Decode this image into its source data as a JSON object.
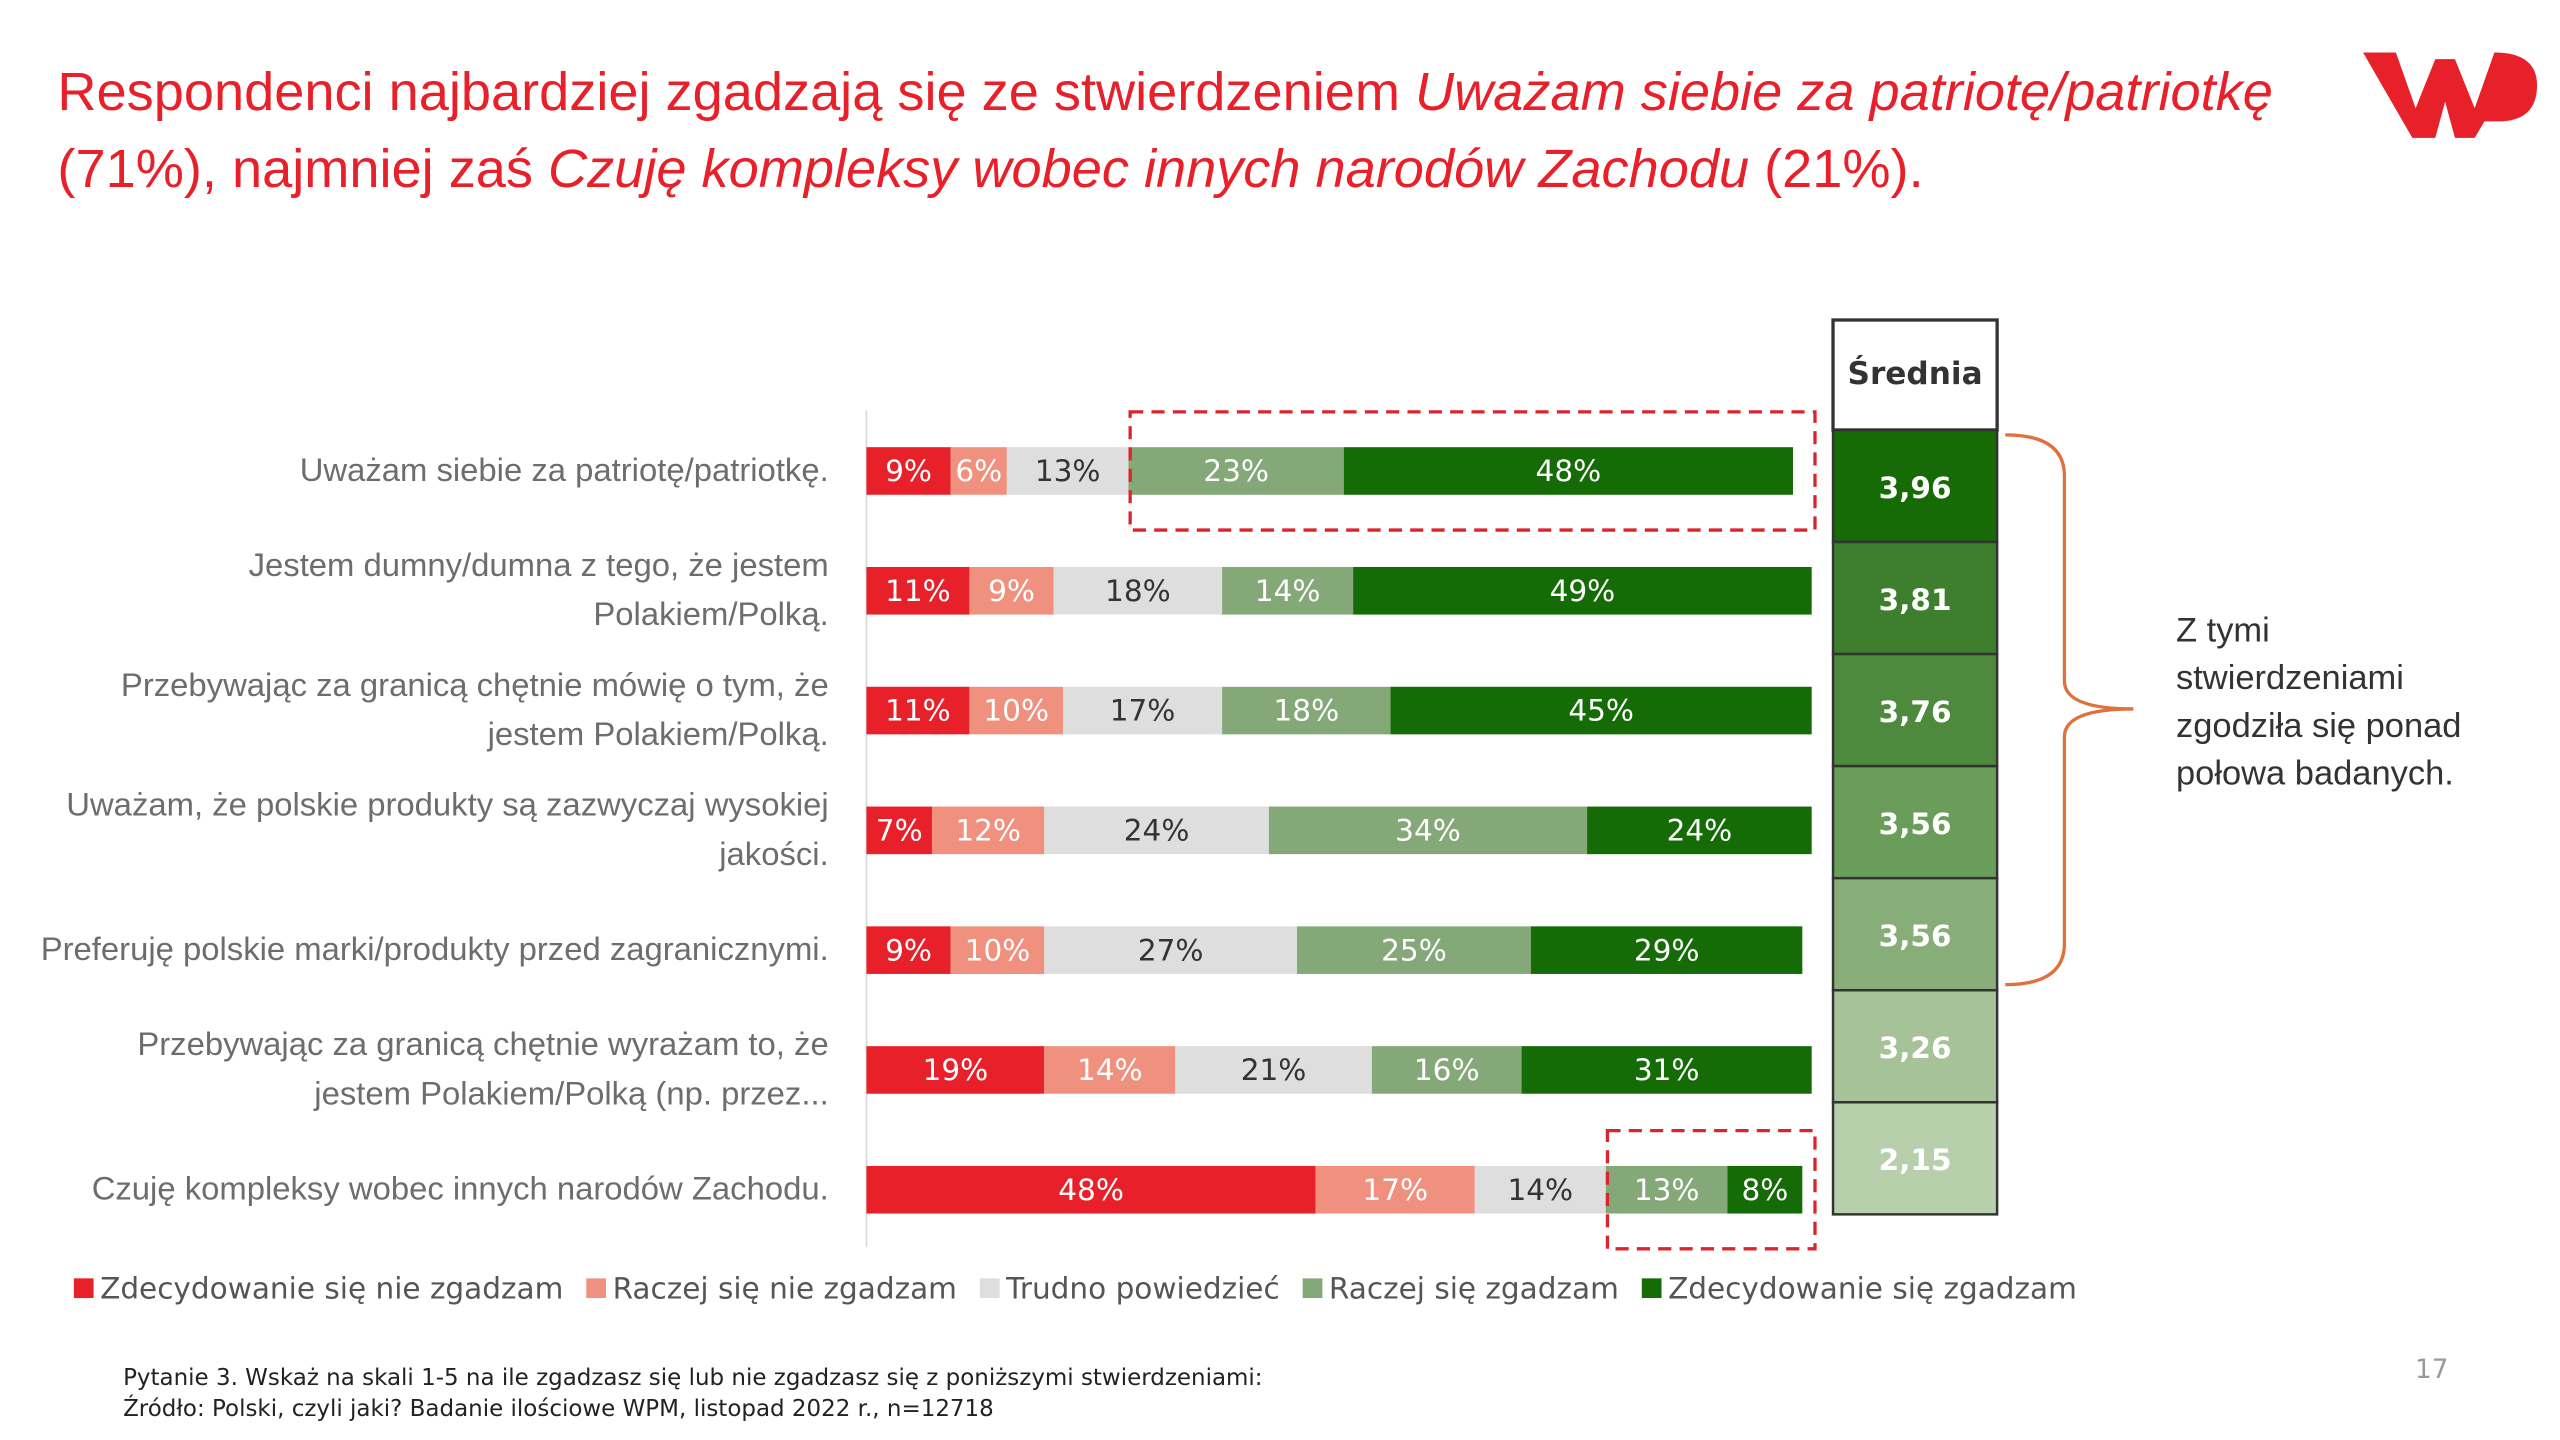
{
  "chart_data": {
    "type": "stacked-bar-horizontal",
    "title": [
      {
        "text": "Respondenci najbardziej zgadzają się ze stwierdzeniem ",
        "italic": false
      },
      {
        "text": "Uważam siebie za patriotę/patriotkę",
        "italic": true
      },
      {
        "text": " (71%), najmniej zaś ",
        "italic": false
      },
      {
        "text": "Czuję kompleksy wobec innych narodów Zachodu",
        "italic": true
      },
      {
        "text": " (21%).",
        "italic": false
      }
    ],
    "categories": [
      "Uważam siebie za patriotę/patriotkę.",
      "Jestem dumny/dumna z tego, że jestem Polakiem/Polką.",
      "Przebywając za granicą chętnie mówię o tym, że jestem Polakiem/Polką.",
      "Uważam, że polskie produkty są zazwyczaj wysokiej jakości.",
      "Preferuję polskie marki/produkty przed zagranicznymi.",
      "Przebywając za granicą chętnie wyrażam to, że jestem Polakiem/Polką (np. przez...",
      "Czuję kompleksy wobec innych narodów Zachodu."
    ],
    "series": [
      {
        "name": "Zdecydowanie się nie zgadzam",
        "color": "#e8202a",
        "label_color": "#ffffff",
        "values": [
          9,
          11,
          11,
          7,
          9,
          19,
          48
        ],
        "value_labels": [
          "9%",
          "11%",
          "11%",
          "7%",
          "9%",
          "19%",
          "48%"
        ]
      },
      {
        "name": "Raczej się nie zgadzam",
        "color": "#f0907f",
        "label_color": "#ffffff",
        "values": [
          6,
          9,
          10,
          12,
          10,
          14,
          17
        ],
        "value_labels": [
          "6%",
          "9%",
          "10%",
          "12%",
          "10%",
          "14%",
          "17%"
        ]
      },
      {
        "name": "Trudno powiedzieć",
        "color": "#dedede",
        "label_color": "#333333",
        "values": [
          13,
          18,
          17,
          24,
          27,
          21,
          14
        ],
        "value_labels": [
          "13%",
          "18%",
          "17%",
          "24%",
          "27%",
          "21%",
          "14%"
        ]
      },
      {
        "name": "Raczej się zgadzam",
        "color": "#84a878",
        "label_color": "#ffffff",
        "values": [
          23,
          14,
          18,
          34,
          25,
          16,
          13
        ],
        "value_labels": [
          "23%",
          "14%",
          "18%",
          "34%",
          "25%",
          "16%",
          "13%"
        ]
      },
      {
        "name": "Zdecydowanie się zgadzam",
        "color": "#156b06",
        "label_color": "#ffffff",
        "values": [
          48,
          49,
          45,
          24,
          29,
          31,
          8
        ],
        "value_labels": [
          "48%",
          "49%",
          "45%",
          "24%",
          "29%",
          "31%",
          "8%"
        ]
      }
    ],
    "averages": {
      "title": "Średnia",
      "values": [
        3.96,
        3.81,
        3.76,
        3.56,
        3.56,
        3.26,
        2.15
      ],
      "value_labels": [
        "3,96",
        "3,81",
        "3,76",
        "3,56",
        "3,56",
        "3,26",
        "2,15"
      ],
      "colors": [
        "#176b07",
        "#3d7f2d",
        "#4d8a3d",
        "#6a9c5a",
        "#87ae78",
        "#a6c298",
        "#b8cfac"
      ]
    },
    "annotation": "Z tymi stwierdzeniami zgodziła się ponad połowa badanych.",
    "footnotes": [
      "Pytanie 3. Wskaż na skali 1-5 na ile zgadzasz się lub nie zgadzasz się z poniższymi stwierdzeniami:",
      "Źródło: Polski, czyli jaki? Badanie ilościowe WPM, listopad 2022 r., n=12718"
    ],
    "page_number": "17"
  }
}
